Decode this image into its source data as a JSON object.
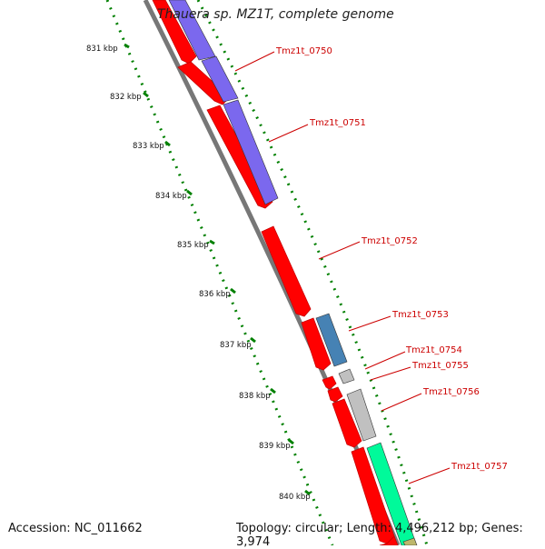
{
  "title": "Thauera sp. MZ1T, complete genome",
  "footer": {
    "accession": "Accession: NC_011662",
    "topology": "Topology: circular; Length: 4,496,212 bp; Genes: 3,974"
  },
  "ticks": [
    "831 kbp",
    "832 kbp",
    "833 kbp",
    "834 kbp",
    "835 kbp",
    "836 kbp",
    "837 kbp",
    "838 kbp",
    "839 kbp",
    "840 kbp"
  ],
  "genes": [
    "Tmz1t_0750",
    "Tmz1t_0751",
    "Tmz1t_0752",
    "Tmz1t_0753",
    "Tmz1t_0754",
    "Tmz1t_0755",
    "Tmz1t_0756",
    "Tmz1t_0757"
  ],
  "colors": {
    "cds": "#ff0000",
    "cog_purple": "#7b68ee",
    "cog_blue": "#4682b4",
    "cog_gray": "#c0c0c0",
    "cog_green": "#00fa9a",
    "tick": "#008000",
    "label_red": "#cc0000",
    "backbone": "#777777"
  }
}
